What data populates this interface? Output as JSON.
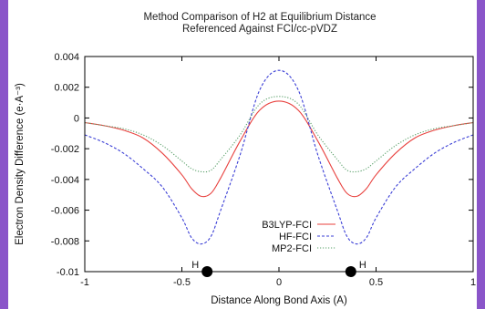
{
  "chart_data": {
    "type": "line",
    "title_lines": [
      "Method Comparison of H2 at Equilibrium Distance",
      "Referenced Against FCI/cc-pVDZ"
    ],
    "xlabel": "Distance Along Bond Axis (A)",
    "ylabel": "Electron Density Difference (e·A⁻³)",
    "xlim": [
      -1,
      1
    ],
    "ylim": [
      -0.01,
      0.004
    ],
    "x_ticks": [
      -1,
      -0.5,
      0,
      0.5,
      1
    ],
    "x_tick_labels": [
      "-1",
      "-0.5",
      "0",
      "0.5",
      "1"
    ],
    "y_ticks": [
      0.004,
      0.002,
      0,
      -0.002,
      -0.004,
      -0.006,
      -0.008,
      -0.01
    ],
    "y_tick_labels": [
      "0.004",
      "0.002",
      "0",
      "-0.002",
      "-0.004",
      "-0.006",
      "-0.008",
      "-0.01"
    ],
    "legend_position": "bottom-center",
    "grid": false,
    "atoms": [
      {
        "label": "H",
        "x": -0.37
      },
      {
        "label": "H",
        "x": 0.37
      }
    ],
    "series": [
      {
        "name": "B3LYP-FCI",
        "color": "#e8413e",
        "dash": "solid",
        "x": [
          -1,
          -0.9,
          -0.8,
          -0.7,
          -0.6,
          -0.5,
          -0.45,
          -0.4,
          -0.35,
          -0.3,
          -0.2,
          -0.1,
          0,
          0.1,
          0.2,
          0.3,
          0.35,
          0.4,
          0.45,
          0.5,
          0.6,
          0.7,
          0.8,
          0.9,
          1
        ],
        "y": [
          -0.0003,
          -0.0005,
          -0.0008,
          -0.0013,
          -0.0023,
          -0.0037,
          -0.0046,
          -0.0051,
          -0.0049,
          -0.0039,
          -0.0015,
          0.0005,
          0.0011,
          0.0005,
          -0.0015,
          -0.0039,
          -0.0049,
          -0.0051,
          -0.0046,
          -0.0037,
          -0.0023,
          -0.0013,
          -0.0008,
          -0.0005,
          -0.0003
        ]
      },
      {
        "name": "HF-FCI",
        "color": "#3b3fd6",
        "dash": "dashed",
        "x": [
          -1,
          -0.9,
          -0.8,
          -0.7,
          -0.6,
          -0.5,
          -0.45,
          -0.4,
          -0.35,
          -0.3,
          -0.2,
          -0.1,
          0,
          0.1,
          0.2,
          0.3,
          0.35,
          0.4,
          0.45,
          0.5,
          0.6,
          0.7,
          0.8,
          0.9,
          1
        ],
        "y": [
          -0.0011,
          -0.0016,
          -0.0023,
          -0.0033,
          -0.0045,
          -0.0065,
          -0.0078,
          -0.0082,
          -0.0077,
          -0.006,
          -0.0024,
          0.0018,
          0.0031,
          0.0018,
          -0.0024,
          -0.006,
          -0.0077,
          -0.0082,
          -0.0078,
          -0.0065,
          -0.0045,
          -0.0033,
          -0.0023,
          -0.0016,
          -0.0011
        ]
      },
      {
        "name": "MP2-FCI",
        "color": "#5aa06a",
        "dash": "dotted",
        "x": [
          -1,
          -0.9,
          -0.8,
          -0.7,
          -0.6,
          -0.5,
          -0.45,
          -0.4,
          -0.35,
          -0.3,
          -0.2,
          -0.1,
          0,
          0.1,
          0.2,
          0.3,
          0.35,
          0.4,
          0.45,
          0.5,
          0.6,
          0.7,
          0.8,
          0.9,
          1
        ],
        "y": [
          -0.0003,
          -0.0005,
          -0.0007,
          -0.0011,
          -0.0018,
          -0.0028,
          -0.0033,
          -0.0035,
          -0.0034,
          -0.0027,
          -0.0011,
          0.0009,
          0.0014,
          0.0009,
          -0.0011,
          -0.0027,
          -0.0034,
          -0.0035,
          -0.0033,
          -0.0028,
          -0.0018,
          -0.0011,
          -0.0007,
          -0.0005,
          -0.0003
        ]
      }
    ]
  }
}
